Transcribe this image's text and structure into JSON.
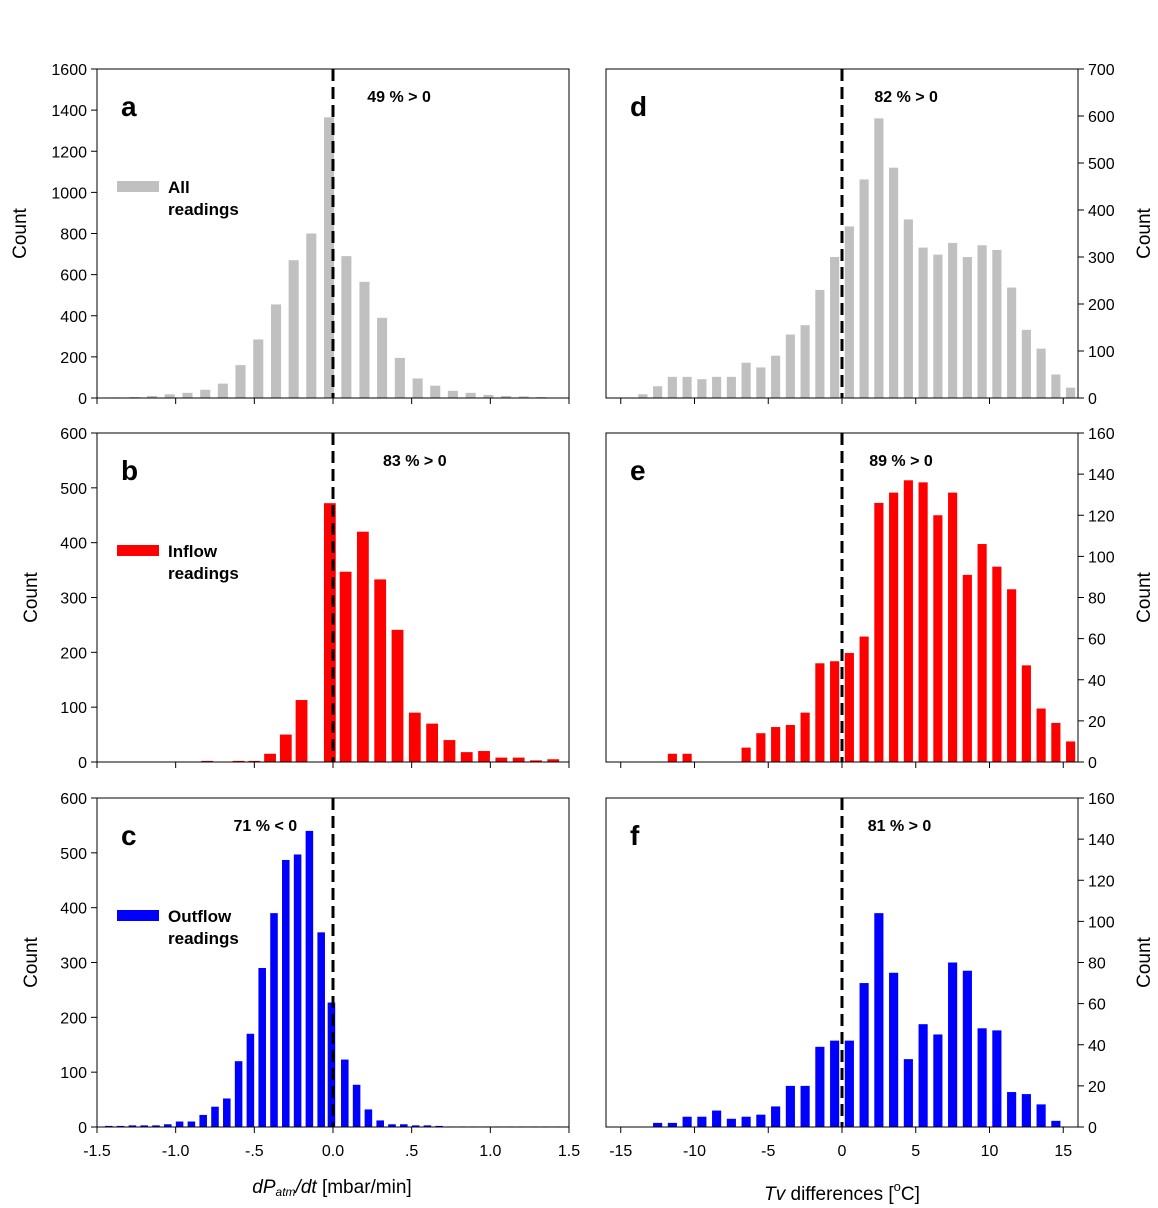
{
  "colors": {
    "all": "#c0c0c0",
    "inflow": "#ff0000",
    "outflow": "#0000ff",
    "axis": "#000000"
  },
  "x_axis_titles": {
    "left": {
      "pre": "dP",
      "sub": "atm",
      "post": "/dt",
      "unit": " [mbar/min]"
    },
    "right": {
      "pre": "Tv",
      "mid": " differences [",
      "sup": "o",
      "post": "C]"
    }
  },
  "chart_data": [
    {
      "id": "a",
      "type": "bar",
      "side": "left",
      "letter": "a",
      "annotation": "49 % > 0",
      "annotation_x": 0.42,
      "legend": {
        "line1": "All",
        "line2": "readings"
      },
      "ylabel": "Count",
      "color": "all",
      "bar_width": 0.064,
      "xlim": [
        -1.5,
        1.5
      ],
      "ylim": [
        0,
        1600
      ],
      "xticks": [
        -1.5,
        -1.0,
        -0.5,
        0.0,
        0.5,
        1.0,
        1.5
      ],
      "xtick_labels": [
        "-1.5",
        "-1.0",
        "-.5",
        "0.0",
        ".5",
        "1.0",
        "1.5"
      ],
      "yticks": [
        0,
        200,
        400,
        600,
        800,
        1000,
        1200,
        1400,
        1600
      ],
      "x": [
        -1.375,
        -1.262,
        -1.15,
        -1.038,
        -0.925,
        -0.812,
        -0.7,
        -0.588,
        -0.475,
        -0.362,
        -0.25,
        -0.138,
        -0.025,
        0.085,
        0.2,
        0.312,
        0.425,
        0.538,
        0.65,
        0.762,
        0.875,
        0.988,
        1.1,
        1.212,
        1.325
      ],
      "values": [
        3,
        5,
        10,
        18,
        25,
        40,
        70,
        160,
        285,
        455,
        670,
        800,
        1365,
        690,
        565,
        390,
        195,
        95,
        60,
        35,
        25,
        15,
        10,
        8,
        5
      ]
    },
    {
      "id": "b",
      "type": "bar",
      "side": "left",
      "letter": "b",
      "annotation": "83 % > 0",
      "annotation_x": 0.52,
      "legend": {
        "line1": "Inflow",
        "line2": "readings"
      },
      "ylabel": "Count",
      "color": "inflow",
      "bar_width": 0.075,
      "xlim": [
        -1.5,
        1.5
      ],
      "ylim": [
        0,
        600
      ],
      "xticks": [
        -1.5,
        -1.0,
        -0.5,
        0.0,
        0.5,
        1.0,
        1.5
      ],
      "xtick_labels": [
        "-1.5",
        "-1.0",
        "-.5",
        "0.0",
        ".5",
        "1.0",
        "1.5"
      ],
      "yticks": [
        0,
        100,
        200,
        300,
        400,
        500,
        600
      ],
      "x": [
        -0.8,
        -0.6,
        -0.5,
        -0.4,
        -0.3,
        -0.2,
        -0.02,
        0.08,
        0.19,
        0.3,
        0.41,
        0.52,
        0.63,
        0.74,
        0.85,
        0.96,
        1.07,
        1.18,
        1.29,
        1.4
      ],
      "values": [
        2,
        2,
        2,
        15,
        50,
        113,
        472,
        347,
        420,
        333,
        241,
        90,
        70,
        40,
        18,
        20,
        8,
        8,
        3,
        5
      ]
    },
    {
      "id": "c",
      "type": "bar",
      "side": "left",
      "letter": "c",
      "annotation": "71 % < 0",
      "annotation_x": -0.43,
      "legend": {
        "line1": "Outflow",
        "line2": "readings"
      },
      "ylabel": "Count",
      "color": "outflow",
      "bar_width": 0.048,
      "xlim": [
        -1.5,
        1.5
      ],
      "ylim": [
        0,
        600
      ],
      "xticks": [
        -1.5,
        -1.0,
        -0.5,
        0.0,
        0.5,
        1.0,
        1.5
      ],
      "xtick_labels": [
        "-1.5",
        "-1.0",
        "-.5",
        "0.0",
        ".5",
        "1.0",
        "1.5"
      ],
      "yticks": [
        0,
        100,
        200,
        300,
        400,
        500,
        600
      ],
      "x": [
        -1.425,
        -1.35,
        -1.275,
        -1.2,
        -1.125,
        -1.05,
        -0.975,
        -0.9,
        -0.825,
        -0.75,
        -0.675,
        -0.6,
        -0.525,
        -0.45,
        -0.375,
        -0.3,
        -0.225,
        -0.15,
        -0.075,
        -0.01,
        0.075,
        0.15,
        0.225,
        0.3,
        0.375,
        0.45,
        0.525,
        0.6,
        0.675,
        0.75,
        0.825,
        0.9,
        0.975,
        1.05,
        1.125,
        1.2,
        1.275,
        1.35,
        1.425
      ],
      "values": [
        2,
        2,
        3,
        3,
        3,
        5,
        10,
        10,
        22,
        37,
        52,
        120,
        170,
        290,
        390,
        487,
        497,
        540,
        355,
        227,
        123,
        77,
        32,
        12,
        5,
        5,
        3,
        3,
        2,
        1,
        1,
        1,
        1,
        1,
        1,
        1,
        1,
        1,
        1
      ]
    },
    {
      "id": "d",
      "type": "bar",
      "side": "right",
      "letter": "d",
      "annotation": "82 % > 0",
      "annotation_x": 4.35,
      "ylabel": "Count",
      "color": "all",
      "bar_width": 0.62,
      "xlim": [
        -16,
        16
      ],
      "ylim": [
        0,
        700
      ],
      "xticks": [
        -15,
        -10,
        -5,
        0,
        5,
        10,
        15
      ],
      "xtick_labels": [
        "-15",
        "-10",
        "-5",
        "0",
        "5",
        "10",
        "15"
      ],
      "yticks": [
        0,
        100,
        200,
        300,
        400,
        500,
        600,
        700
      ],
      "x": [
        -13.5,
        -12.5,
        -11.5,
        -10.5,
        -9.5,
        -8.5,
        -7.5,
        -6.5,
        -5.5,
        -4.5,
        -3.5,
        -2.5,
        -1.5,
        -0.5,
        0.5,
        1.5,
        2.5,
        3.5,
        4.5,
        5.5,
        6.5,
        7.5,
        8.5,
        9.5,
        10.5,
        11.5,
        12.5,
        13.5,
        14.5,
        15.5
      ],
      "values": [
        8,
        25,
        45,
        45,
        40,
        45,
        45,
        75,
        65,
        90,
        135,
        155,
        230,
        300,
        365,
        465,
        595,
        490,
        380,
        320,
        305,
        330,
        300,
        325,
        315,
        235,
        145,
        105,
        50,
        22
      ]
    },
    {
      "id": "e",
      "type": "bar",
      "side": "right",
      "letter": "e",
      "annotation": "89 % > 0",
      "annotation_x": 4.0,
      "ylabel": "Count",
      "color": "inflow",
      "bar_width": 0.62,
      "xlim": [
        -16,
        16
      ],
      "ylim": [
        0,
        160
      ],
      "xticks": [
        -15,
        -10,
        -5,
        0,
        5,
        10,
        15
      ],
      "xtick_labels": [
        "-15",
        "-10",
        "-5",
        "0",
        "5",
        "10",
        "15"
      ],
      "yticks": [
        0,
        20,
        40,
        60,
        80,
        100,
        120,
        140,
        160
      ],
      "x": [
        -11.5,
        -10.5,
        -6.5,
        -5.5,
        -4.5,
        -3.5,
        -2.5,
        -1.5,
        -0.5,
        0.5,
        1.5,
        2.5,
        3.5,
        4.5,
        5.5,
        6.5,
        7.5,
        8.5,
        9.5,
        10.5,
        11.5,
        12.5,
        13.5,
        14.5,
        15.5
      ],
      "values": [
        4,
        4,
        7,
        14,
        17,
        18,
        24,
        48,
        49,
        53,
        61,
        126,
        131,
        137,
        136,
        120,
        131,
        91,
        106,
        95,
        84,
        47,
        26,
        19,
        10
      ]
    },
    {
      "id": "f",
      "type": "bar",
      "side": "right",
      "letter": "f",
      "annotation": "81 % > 0",
      "annotation_x": 3.9,
      "ylabel": "Count",
      "color": "outflow",
      "bar_width": 0.62,
      "xlim": [
        -16,
        16
      ],
      "ylim": [
        0,
        160
      ],
      "xticks": [
        -15,
        -10,
        -5,
        0,
        5,
        10,
        15
      ],
      "xtick_labels": [
        "-15",
        "-10",
        "-5",
        "0",
        "5",
        "10",
        "15"
      ],
      "yticks": [
        0,
        20,
        40,
        60,
        80,
        100,
        120,
        140,
        160
      ],
      "x": [
        -12.5,
        -11.5,
        -10.5,
        -9.5,
        -8.5,
        -7.5,
        -6.5,
        -5.5,
        -4.5,
        -3.5,
        -2.5,
        -1.5,
        -0.5,
        0.5,
        1.5,
        2.5,
        3.5,
        4.5,
        5.5,
        6.5,
        7.5,
        8.5,
        9.5,
        10.5,
        11.5,
        12.5,
        13.5,
        14.5
      ],
      "values": [
        2,
        2,
        5,
        5,
        8,
        4,
        5,
        6,
        10,
        20,
        20,
        39,
        42,
        42,
        70,
        104,
        75,
        33,
        50,
        45,
        80,
        76,
        48,
        47,
        17,
        16,
        11,
        3
      ]
    }
  ]
}
